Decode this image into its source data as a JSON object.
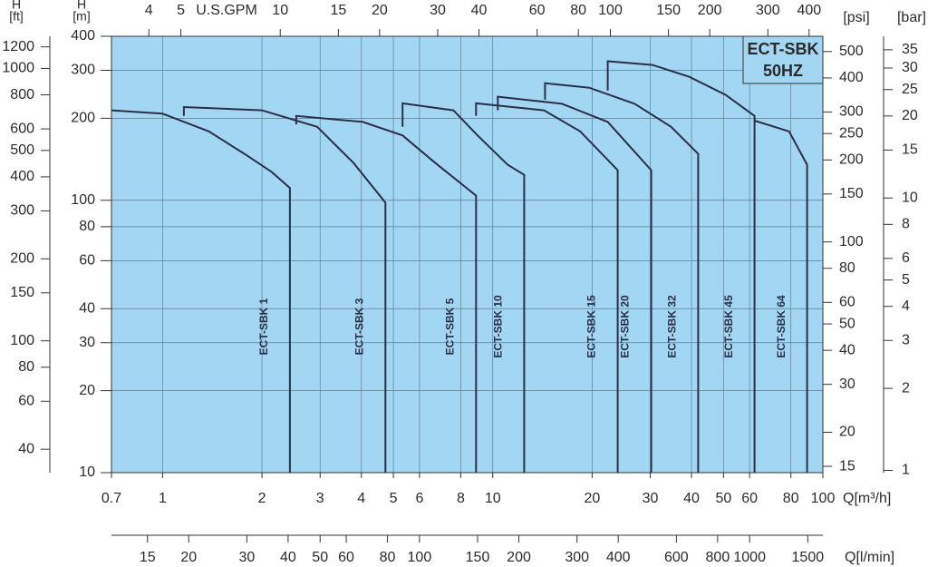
{
  "chart_data": {
    "type": "line",
    "title": "ECT-SBK",
    "subtitle": "50HZ",
    "x_label": "Q[m³/h]",
    "y_label": [
      "H",
      "[m]"
    ],
    "log_x": true,
    "log_y": true,
    "grid": true,
    "plot_color": "#a3d6f2",
    "xlim": [
      0.7,
      100
    ],
    "xticks": [
      0.7,
      1,
      2,
      3,
      4,
      5,
      6,
      8,
      10,
      20,
      30,
      40,
      50,
      60,
      80,
      100
    ],
    "ylim": [
      10,
      400
    ],
    "yticks": [
      10,
      20,
      30,
      40,
      60,
      80,
      100,
      200,
      300,
      400
    ],
    "axes": {
      "top": {
        "label": "U.S.GPM",
        "lim": [
          3.082,
          440.3
        ],
        "ticks": [
          4,
          5,
          10,
          15,
          20,
          30,
          40,
          60,
          80,
          100,
          150,
          200,
          300,
          400
        ]
      },
      "bottom2": {
        "label": "Q[l/min]",
        "lim": [
          11.67,
          1666.7
        ],
        "ticks": [
          15,
          20,
          30,
          40,
          50,
          60,
          80,
          100,
          150,
          200,
          300,
          400,
          600,
          800,
          1000,
          1500
        ]
      },
      "left2": {
        "label": [
          "H",
          "[ft]"
        ],
        "lim": [
          32.81,
          1312.3
        ],
        "ticks": [
          40,
          60,
          80,
          100,
          150,
          200,
          300,
          400,
          500,
          600,
          800,
          1000,
          1200
        ]
      },
      "right": {
        "label": "[psi]",
        "lim": [
          14.22,
          568.9
        ],
        "ticks": [
          15,
          20,
          30,
          40,
          50,
          60,
          80,
          100,
          150,
          200,
          250,
          300,
          400,
          500
        ]
      },
      "right2": {
        "label": "[bar]",
        "lim": [
          0.981,
          39.23
        ],
        "ticks": [
          1,
          2,
          3,
          4,
          5,
          6,
          8,
          10,
          15,
          20,
          25,
          30,
          35
        ]
      }
    },
    "series": [
      {
        "name": "ECT-SBK 1",
        "color": "#2b3048",
        "x": [
          0.7,
          1.0,
          1.38,
          1.77,
          2.14,
          2.43,
          2.43
        ],
        "values": [
          214,
          208,
          179,
          148,
          127,
          111,
          10
        ]
      },
      {
        "name": "ECT-SBK 3",
        "color": "#2b3048",
        "x": [
          1.16,
          1.16,
          2.0,
          2.94,
          3.79,
          4.73,
          4.73
        ],
        "values": [
          204,
          220,
          214,
          186,
          137,
          98,
          10
        ]
      },
      {
        "name": "ECT-SBK 5",
        "color": "#2b3048",
        "x": [
          2.54,
          2.54,
          4.04,
          5.33,
          6.7,
          8.9,
          8.9
        ],
        "values": [
          190,
          204,
          194,
          173,
          137,
          104,
          10
        ]
      },
      {
        "name": "ECT-SBK 10",
        "color": "#2b3048",
        "x": [
          5.33,
          5.33,
          7.6,
          9.0,
          11.1,
          12.45,
          12.45
        ],
        "values": [
          186,
          227,
          214,
          173,
          135,
          124,
          10
        ]
      },
      {
        "name": "ECT-SBK 15",
        "color": "#2b3048",
        "x": [
          8.9,
          8.9,
          14.3,
          18.4,
          23.9,
          23.9
        ],
        "values": [
          204,
          227,
          214,
          179,
          129,
          10
        ]
      },
      {
        "name": "ECT-SBK 20",
        "color": "#2b3048",
        "x": [
          10.36,
          10.36,
          16.2,
          22.3,
          30.2,
          30.2
        ],
        "values": [
          214,
          240,
          226,
          194,
          129,
          10
        ]
      },
      {
        "name": "ECT-SBK 32",
        "color": "#2b3048",
        "x": [
          14.4,
          14.4,
          19.6,
          26.9,
          34.7,
          41.9,
          41.9
        ],
        "values": [
          234,
          269,
          259,
          226,
          186,
          148,
          10
        ]
      },
      {
        "name": "ECT-SBK 45",
        "color": "#2b3048",
        "x": [
          22.3,
          22.3,
          30.5,
          39.4,
          50.7,
          62.1,
          62.1
        ],
        "values": [
          253,
          324,
          314,
          284,
          244,
          204,
          10
        ]
      },
      {
        "name": "ECT-SBK 64",
        "color": "#2b3048",
        "x": [
          62.1,
          79.0,
          89.6,
          89.6
        ],
        "values": [
          196,
          179,
          135,
          10
        ]
      }
    ]
  }
}
